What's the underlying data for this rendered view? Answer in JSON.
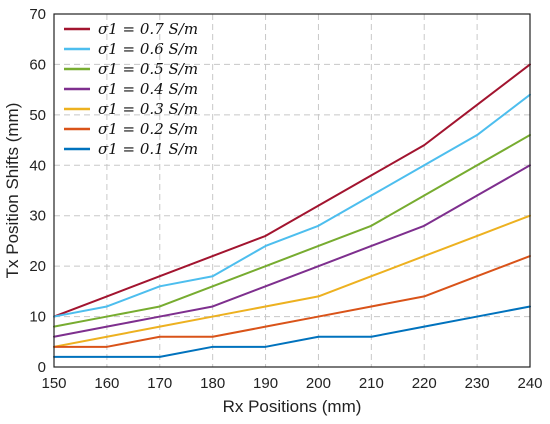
{
  "chart_data": {
    "type": "line",
    "title": "",
    "xlabel": "Rx Positions (mm)",
    "ylabel": "Tx Position Shifts (mm)",
    "xlim": [
      150,
      240
    ],
    "ylim": [
      0,
      70
    ],
    "xticks": [
      150,
      160,
      170,
      180,
      190,
      200,
      210,
      220,
      230,
      240
    ],
    "yticks": [
      0,
      10,
      20,
      30,
      40,
      50,
      60,
      70
    ],
    "grid": true,
    "legend_position": "top-left",
    "x": [
      150,
      160,
      170,
      180,
      190,
      200,
      210,
      220,
      230,
      240
    ],
    "series": [
      {
        "name": "σ1 = 0.7 S/m",
        "color": "#a2142f",
        "values": [
          10,
          14,
          18,
          22,
          26,
          32,
          38,
          44,
          52,
          60
        ]
      },
      {
        "name": "σ1 = 0.6 S/m",
        "color": "#4dbeee",
        "values": [
          10,
          12,
          16,
          18,
          24,
          28,
          34,
          40,
          46,
          54
        ]
      },
      {
        "name": "σ1 = 0.5 S/m",
        "color": "#77ac30",
        "values": [
          8,
          10,
          12,
          16,
          20,
          24,
          28,
          34,
          40,
          46
        ]
      },
      {
        "name": "σ1 = 0.4 S/m",
        "color": "#7e2f8e",
        "values": [
          6,
          8,
          10,
          12,
          16,
          20,
          24,
          28,
          34,
          40
        ]
      },
      {
        "name": "σ1 = 0.3 S/m",
        "color": "#edb120",
        "values": [
          4,
          6,
          8,
          10,
          12,
          14,
          18,
          22,
          26,
          30
        ]
      },
      {
        "name": "σ1 = 0.2 S/m",
        "color": "#d95319",
        "values": [
          4,
          4,
          6,
          6,
          8,
          10,
          12,
          14,
          18,
          22
        ]
      },
      {
        "name": "σ1 = 0.1 S/m",
        "color": "#0072bd",
        "values": [
          2,
          2,
          2,
          4,
          4,
          6,
          6,
          8,
          10,
          12
        ]
      }
    ]
  }
}
